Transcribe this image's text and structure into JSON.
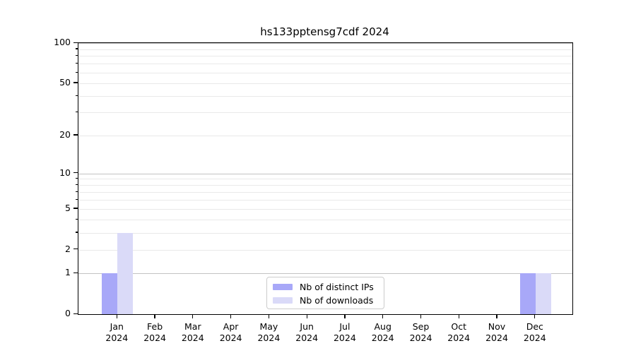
{
  "chart_data": {
    "type": "bar",
    "title": "hs133pptensg7cdf 2024",
    "categories": [
      "Jan",
      "Feb",
      "Mar",
      "Apr",
      "May",
      "Jun",
      "Jul",
      "Aug",
      "Sep",
      "Oct",
      "Nov",
      "Dec"
    ],
    "year_label": "2024",
    "series": [
      {
        "name": "Nb of distinct IPs",
        "color": "#a8a8f8",
        "values": [
          1,
          0,
          0,
          0,
          0,
          0,
          0,
          0,
          0,
          0,
          0,
          1
        ]
      },
      {
        "name": "Nb of downloads",
        "color": "#dadaf8",
        "values": [
          3,
          0,
          0,
          0,
          0,
          0,
          0,
          0,
          0,
          0,
          0,
          1
        ]
      }
    ],
    "y_axis": {
      "scale": "log1p",
      "ylim": [
        0,
        100
      ],
      "tick_labels": [
        0,
        1,
        2,
        5,
        10,
        20,
        50,
        100
      ],
      "major_gridline_values": [
        1,
        10,
        100
      ],
      "minor_gridline_values": [
        2,
        3,
        4,
        5,
        6,
        7,
        8,
        9,
        20,
        30,
        40,
        50,
        60,
        70,
        80,
        90
      ],
      "unlabeled_minor_tick_values": [
        3,
        4,
        6,
        7,
        8,
        9,
        30,
        40,
        60,
        70,
        80,
        90
      ]
    },
    "legend": {
      "position": "bottom-center",
      "entries": [
        "Nb of distinct IPs",
        "Nb of downloads"
      ]
    },
    "colors": {
      "major_grid": "#c3c3c3",
      "minor_grid": "#e9e9e9",
      "spine": "#000000",
      "text": "#000000",
      "legend_border": "#cccccc"
    }
  }
}
